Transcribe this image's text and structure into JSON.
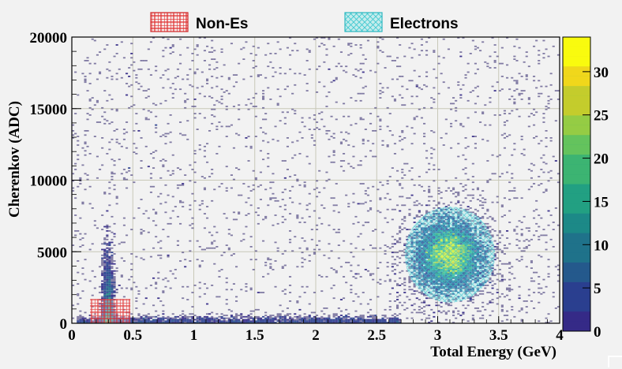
{
  "chart_data": {
    "type": "heatmap",
    "xlabel": "Total Energy (GeV)",
    "ylabel": "Cherenkov (ADC)",
    "xlim": [
      0,
      4
    ],
    "ylim": [
      0,
      20000
    ],
    "x_ticks": [
      {
        "value": 0,
        "label": "0"
      },
      {
        "value": 0.5,
        "label": "0.5"
      },
      {
        "value": 1,
        "label": "1"
      },
      {
        "value": 1.5,
        "label": "1.5"
      },
      {
        "value": 2,
        "label": "2"
      },
      {
        "value": 2.5,
        "label": "2.5"
      },
      {
        "value": 3,
        "label": "3"
      },
      {
        "value": 3.5,
        "label": "3.5"
      },
      {
        "value": 4,
        "label": "4"
      }
    ],
    "y_ticks": [
      {
        "value": 0,
        "label": "0"
      },
      {
        "value": 5000,
        "label": "5000"
      },
      {
        "value": 10000,
        "label": "10000"
      },
      {
        "value": 15000,
        "label": "15000"
      },
      {
        "value": 20000,
        "label": "20000"
      }
    ],
    "colorbar": {
      "range": [
        0,
        34
      ],
      "ticks": [
        {
          "value": 0,
          "label": "0"
        },
        {
          "value": 5,
          "label": "5"
        },
        {
          "value": 10,
          "label": "10"
        },
        {
          "value": 15,
          "label": "15"
        },
        {
          "value": 20,
          "label": "20"
        },
        {
          "value": 25,
          "label": "25"
        },
        {
          "value": 30,
          "label": "30"
        }
      ],
      "palette": [
        "#352a87",
        "#2a3f8f",
        "#24598c",
        "#1f728a",
        "#1c8987",
        "#22a082",
        "#3cb472",
        "#64c35d",
        "#95cc44",
        "#c4cc2c",
        "#f0d71b",
        "#f9fb0e"
      ]
    },
    "grid": true,
    "legend": {
      "position": "top",
      "entries": [
        {
          "label": "Non-Es",
          "pattern": "red-crosshatch",
          "color": "#e04040"
        },
        {
          "label": "Electrons",
          "pattern": "cyan-hatch",
          "color": "#40c8c8"
        }
      ]
    },
    "regions": [
      {
        "name": "Non-Es",
        "energy_range": [
          0.15,
          0.48
        ],
        "cherenkov_range": [
          0,
          1700
        ]
      },
      {
        "name": "Electrons",
        "energy_range": [
          2.72,
          3.46
        ],
        "cherenkov_range": [
          1500,
          8200
        ],
        "peak": {
          "energy": 3.1,
          "cherenkov": 4800,
          "counts": 33
        }
      }
    ],
    "background": {
      "features": [
        {
          "kind": "band-low-energy",
          "energy": [
            0.25,
            0.35
          ],
          "cherenkov": [
            0,
            12000
          ]
        },
        {
          "kind": "band-near-zero",
          "energy": [
            0.05,
            2.7
          ],
          "cherenkov": [
            0,
            800
          ]
        },
        {
          "kind": "diffuse",
          "energy": [
            0,
            4
          ],
          "cherenkov": [
            0,
            20000
          ]
        }
      ]
    }
  }
}
